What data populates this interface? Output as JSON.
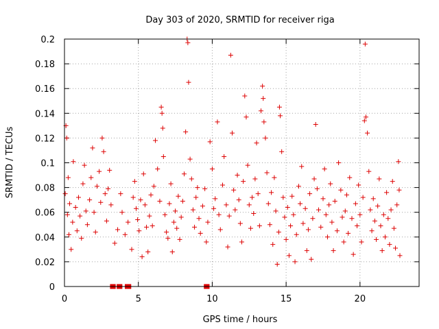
{
  "chart_data": {
    "type": "scatter",
    "title": "Day 303 of 2020, SRMTID for receiver riga",
    "xlabel": "GPS time / hours",
    "ylabel": "SRMTID / TECUs",
    "xlim": [
      0,
      24
    ],
    "ylim": [
      0,
      0.2
    ],
    "x_ticks": [
      0,
      5,
      10,
      15,
      20
    ],
    "y_ticks": [
      0,
      0.02,
      0.04,
      0.06,
      0.08,
      0.1,
      0.12,
      0.14,
      0.16,
      0.18,
      0.2
    ],
    "x_tick_labels": [
      "0",
      "5",
      "10",
      "15",
      "20"
    ],
    "y_tick_labels": [
      "0",
      "0.02",
      "0.04",
      "0.06",
      "0.08",
      "0.1",
      "0.12",
      "0.14",
      "0.16",
      "0.18",
      "0.2"
    ],
    "grid": true,
    "marker": "+",
    "color": "#dd0000",
    "series": [
      {
        "name": "SRMTID",
        "points": [
          [
            0.05,
            0.075
          ],
          [
            0.1,
            0.13
          ],
          [
            0.15,
            0.12
          ],
          [
            0.2,
            0.058
          ],
          [
            0.25,
            0.088
          ],
          [
            0.3,
            0.042
          ],
          [
            0.35,
            0.067
          ],
          [
            0.45,
            0.03
          ],
          [
            0.55,
            0.052
          ],
          [
            0.6,
            0.101
          ],
          [
            0.75,
            0.064
          ],
          [
            0.85,
            0.045
          ],
          [
            0.95,
            0.072
          ],
          [
            1.05,
            0.057
          ],
          [
            1.15,
            0.039
          ],
          [
            1.25,
            0.083
          ],
          [
            1.35,
            0.098
          ],
          [
            1.45,
            0.061
          ],
          [
            1.55,
            0.05
          ],
          [
            1.7,
            0.07
          ],
          [
            1.8,
            0.088
          ],
          [
            1.9,
            0.112
          ],
          [
            2.0,
            0.06
          ],
          [
            2.1,
            0.044
          ],
          [
            2.2,
            0.081
          ],
          [
            2.35,
            0.093
          ],
          [
            2.45,
            0.068
          ],
          [
            2.55,
            0.12
          ],
          [
            2.65,
            0.109
          ],
          [
            2.75,
            0.075
          ],
          [
            2.85,
            0.053
          ],
          [
            2.95,
            0.079
          ],
          [
            3.05,
            0.094
          ],
          [
            3.15,
            0.066
          ],
          [
            3.4,
            0.035
          ],
          [
            3.6,
            0.046
          ],
          [
            3.8,
            0.075
          ],
          [
            3.9,
            0.06
          ],
          [
            4.1,
            0.042
          ],
          [
            4.3,
            0.052
          ],
          [
            4.55,
            0.03
          ],
          [
            4.65,
            0.072
          ],
          [
            4.75,
            0.085
          ],
          [
            4.85,
            0.063
          ],
          [
            4.95,
            0.054
          ],
          [
            5.05,
            0.045
          ],
          [
            5.15,
            0.07
          ],
          [
            5.25,
            0.024
          ],
          [
            5.35,
            0.091
          ],
          [
            5.45,
            0.066
          ],
          [
            5.55,
            0.048
          ],
          [
            5.65,
            0.028
          ],
          [
            5.75,
            0.057
          ],
          [
            5.85,
            0.074
          ],
          [
            5.95,
            0.049
          ],
          [
            6.05,
            0.081
          ],
          [
            6.15,
            0.118
          ],
          [
            6.3,
            0.095
          ],
          [
            6.45,
            0.069
          ],
          [
            6.55,
            0.145
          ],
          [
            6.6,
            0.14
          ],
          [
            6.65,
            0.128
          ],
          [
            6.7,
            0.105
          ],
          [
            6.8,
            0.058
          ],
          [
            6.9,
            0.044
          ],
          [
            7.0,
            0.039
          ],
          [
            7.1,
            0.067
          ],
          [
            7.2,
            0.083
          ],
          [
            7.3,
            0.028
          ],
          [
            7.4,
            0.052
          ],
          [
            7.5,
            0.061
          ],
          [
            7.6,
            0.047
          ],
          [
            7.7,
            0.073
          ],
          [
            7.8,
            0.038
          ],
          [
            7.9,
            0.056
          ],
          [
            8.0,
            0.069
          ],
          [
            8.1,
            0.091
          ],
          [
            8.2,
            0.125
          ],
          [
            8.3,
            0.2
          ],
          [
            8.35,
            0.197
          ],
          [
            8.4,
            0.165
          ],
          [
            8.5,
            0.103
          ],
          [
            8.6,
            0.087
          ],
          [
            8.7,
            0.062
          ],
          [
            8.8,
            0.048
          ],
          [
            8.9,
            0.072
          ],
          [
            9.0,
            0.08
          ],
          [
            9.1,
            0.055
          ],
          [
            9.2,
            0.043
          ],
          [
            9.35,
            0.065
          ],
          [
            9.5,
            0.079
          ],
          [
            9.6,
            0.036
          ],
          [
            9.7,
            0.052
          ],
          [
            9.85,
            0.117
          ],
          [
            10.0,
            0.095
          ],
          [
            10.1,
            0.063
          ],
          [
            10.2,
            0.071
          ],
          [
            10.35,
            0.133
          ],
          [
            10.45,
            0.058
          ],
          [
            10.55,
            0.046
          ],
          [
            10.7,
            0.082
          ],
          [
            10.8,
            0.105
          ],
          [
            10.95,
            0.066
          ],
          [
            11.05,
            0.032
          ],
          [
            11.15,
            0.057
          ],
          [
            11.25,
            0.187
          ],
          [
            11.35,
            0.124
          ],
          [
            11.45,
            0.078
          ],
          [
            11.55,
            0.062
          ],
          [
            11.7,
            0.09
          ],
          [
            11.8,
            0.07
          ],
          [
            11.9,
            0.051
          ],
          [
            12.0,
            0.036
          ],
          [
            12.1,
            0.085
          ],
          [
            12.2,
            0.154
          ],
          [
            12.3,
            0.137
          ],
          [
            12.4,
            0.098
          ],
          [
            12.5,
            0.066
          ],
          [
            12.6,
            0.047
          ],
          [
            12.7,
            0.072
          ],
          [
            12.8,
            0.059
          ],
          [
            12.9,
            0.087
          ],
          [
            13.0,
            0.116
          ],
          [
            13.1,
            0.075
          ],
          [
            13.2,
            0.049
          ],
          [
            13.3,
            0.142
          ],
          [
            13.4,
            0.162
          ],
          [
            13.45,
            0.152
          ],
          [
            13.5,
            0.133
          ],
          [
            13.6,
            0.12
          ],
          [
            13.7,
            0.092
          ],
          [
            13.8,
            0.067
          ],
          [
            13.9,
            0.05
          ],
          [
            14.0,
            0.076
          ],
          [
            14.1,
            0.034
          ],
          [
            14.2,
            0.088
          ],
          [
            14.3,
            0.061
          ],
          [
            14.4,
            0.018
          ],
          [
            14.5,
            0.044
          ],
          [
            14.55,
            0.145
          ],
          [
            14.6,
            0.138
          ],
          [
            14.7,
            0.109
          ],
          [
            14.8,
            0.072
          ],
          [
            14.9,
            0.056
          ],
          [
            15.0,
            0.038
          ],
          [
            15.1,
            0.064
          ],
          [
            15.2,
            0.025
          ],
          [
            15.3,
            0.049
          ],
          [
            15.4,
            0.073
          ],
          [
            15.5,
            0.058
          ],
          [
            15.6,
            0.02
          ],
          [
            15.7,
            0.042
          ],
          [
            15.85,
            0.081
          ],
          [
            15.95,
            0.067
          ],
          [
            16.05,
            0.097
          ],
          [
            16.15,
            0.051
          ],
          [
            16.3,
            0.063
          ],
          [
            16.4,
            0.029
          ],
          [
            16.5,
            0.046
          ],
          [
            16.6,
            0.075
          ],
          [
            16.7,
            0.022
          ],
          [
            16.8,
            0.055
          ],
          [
            16.9,
            0.087
          ],
          [
            17.0,
            0.131
          ],
          [
            17.1,
            0.079
          ],
          [
            17.2,
            0.062
          ],
          [
            17.35,
            0.048
          ],
          [
            17.5,
            0.071
          ],
          [
            17.6,
            0.095
          ],
          [
            17.7,
            0.058
          ],
          [
            17.8,
            0.04
          ],
          [
            17.9,
            0.066
          ],
          [
            18.0,
            0.083
          ],
          [
            18.1,
            0.052
          ],
          [
            18.2,
            0.029
          ],
          [
            18.3,
            0.069
          ],
          [
            18.45,
            0.045
          ],
          [
            18.55,
            0.1
          ],
          [
            18.7,
            0.078
          ],
          [
            18.8,
            0.056
          ],
          [
            18.9,
            0.036
          ],
          [
            19.0,
            0.061
          ],
          [
            19.1,
            0.074
          ],
          [
            19.2,
            0.043
          ],
          [
            19.3,
            0.088
          ],
          [
            19.45,
            0.055
          ],
          [
            19.55,
            0.026
          ],
          [
            19.7,
            0.067
          ],
          [
            19.8,
            0.049
          ],
          [
            19.9,
            0.082
          ],
          [
            20.0,
            0.058
          ],
          [
            20.1,
            0.036
          ],
          [
            20.2,
            0.072
          ],
          [
            20.3,
            0.134
          ],
          [
            20.35,
            0.196
          ],
          [
            20.4,
            0.137
          ],
          [
            20.5,
            0.124
          ],
          [
            20.6,
            0.093
          ],
          [
            20.7,
            0.062
          ],
          [
            20.8,
            0.045
          ],
          [
            20.9,
            0.071
          ],
          [
            21.0,
            0.053
          ],
          [
            21.1,
            0.038
          ],
          [
            21.2,
            0.065
          ],
          [
            21.3,
            0.087
          ],
          [
            21.4,
            0.049
          ],
          [
            21.5,
            0.029
          ],
          [
            21.6,
            0.058
          ],
          [
            21.7,
            0.04
          ],
          [
            21.8,
            0.076
          ],
          [
            21.9,
            0.055
          ],
          [
            22.0,
            0.034
          ],
          [
            22.1,
            0.062
          ],
          [
            22.2,
            0.085
          ],
          [
            22.3,
            0.047
          ],
          [
            22.4,
            0.031
          ],
          [
            22.5,
            0.066
          ],
          [
            22.6,
            0.101
          ],
          [
            22.65,
            0.078
          ],
          [
            22.7,
            0.025
          ]
        ]
      }
    ],
    "zero_markers_x": [
      3.2,
      3.35,
      3.65,
      3.8,
      4.2,
      4.4,
      9.55,
      9.7
    ]
  }
}
